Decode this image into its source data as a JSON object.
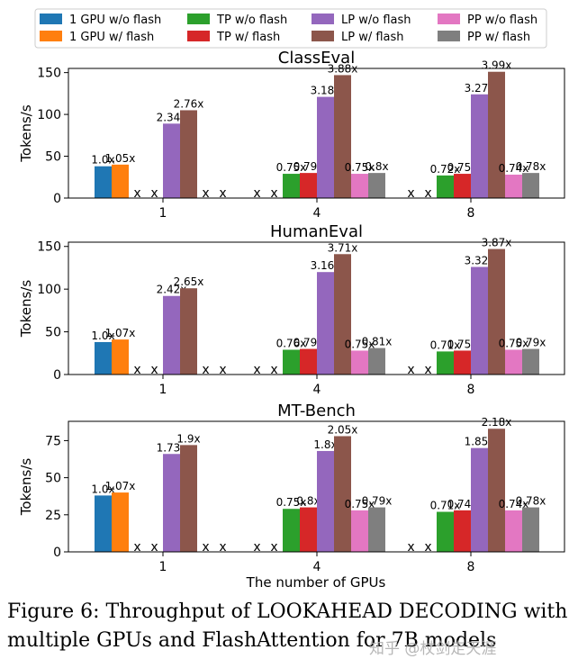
{
  "legend": {
    "entries": [
      {
        "label": "1 GPU w/o flash",
        "color": "#1f77b4"
      },
      {
        "label": "1 GPU w/ flash",
        "color": "#ff7f0e"
      },
      {
        "label": "TP w/o flash",
        "color": "#2ca02c"
      },
      {
        "label": "TP w/ flash",
        "color": "#d62728"
      },
      {
        "label": "LP w/o flash",
        "color": "#9467bd"
      },
      {
        "label": "LP w/ flash",
        "color": "#8c564b"
      },
      {
        "label": "PP w/o flash",
        "color": "#e377c2"
      },
      {
        "label": "PP w/ flash",
        "color": "#7f7f7f"
      }
    ]
  },
  "chart_data": [
    {
      "type": "bar",
      "title": "ClassEval",
      "ylabel": "Tokens/s",
      "xlabel": "",
      "ylim": [
        0,
        155
      ],
      "yticks": [
        0,
        50,
        100,
        150
      ],
      "categories": [
        "1",
        "4",
        "8"
      ],
      "missing_marker": "x",
      "series": [
        {
          "name": "1 GPU w/o flash",
          "values": [
            38,
            null,
            null
          ],
          "labels": [
            "1.0x",
            "x",
            "x"
          ]
        },
        {
          "name": "1 GPU w/ flash",
          "values": [
            40,
            null,
            null
          ],
          "labels": [
            "1.05x",
            "x",
            "x"
          ]
        },
        {
          "name": "TP w/o flash",
          "values": [
            null,
            29,
            27
          ],
          "labels": [
            "x",
            "0.75x",
            "0.72x"
          ]
        },
        {
          "name": "TP w/ flash",
          "values": [
            null,
            30,
            29
          ],
          "labels": [
            "x",
            "0.79x",
            "0.75x"
          ]
        },
        {
          "name": "LP w/o flash",
          "values": [
            89,
            121,
            124
          ],
          "labels": [
            "2.34x",
            "3.18x",
            "3.27x"
          ]
        },
        {
          "name": "LP w/ flash",
          "values": [
            105,
            147,
            151
          ],
          "labels": [
            "2.76x",
            "3.88x",
            "3.99x"
          ]
        },
        {
          "name": "PP w/o flash",
          "values": [
            null,
            29,
            28
          ],
          "labels": [
            "x",
            "0.75x",
            "0.74x"
          ]
        },
        {
          "name": "PP w/ flash",
          "values": [
            null,
            30,
            30
          ],
          "labels": [
            "x",
            "0.8x",
            "0.78x"
          ]
        }
      ]
    },
    {
      "type": "bar",
      "title": "HumanEval",
      "ylabel": "Tokens/s",
      "xlabel": "",
      "ylim": [
        0,
        155
      ],
      "yticks": [
        0,
        50,
        100,
        150
      ],
      "categories": [
        "1",
        "4",
        "8"
      ],
      "missing_marker": "x",
      "series": [
        {
          "name": "1 GPU w/o flash",
          "values": [
            38,
            null,
            null
          ],
          "labels": [
            "1.0x",
            "x",
            "x"
          ]
        },
        {
          "name": "1 GPU w/ flash",
          "values": [
            41,
            null,
            null
          ],
          "labels": [
            "1.07x",
            "x",
            "x"
          ]
        },
        {
          "name": "TP w/o flash",
          "values": [
            null,
            29,
            27
          ],
          "labels": [
            "x",
            "0.76x",
            "0.71x"
          ]
        },
        {
          "name": "TP w/ flash",
          "values": [
            null,
            30,
            28
          ],
          "labels": [
            "x",
            "0.79x",
            "0.75x"
          ]
        },
        {
          "name": "LP w/o flash",
          "values": [
            92,
            120,
            126
          ],
          "labels": [
            "2.42x",
            "3.16x",
            "3.32x"
          ]
        },
        {
          "name": "LP w/ flash",
          "values": [
            101,
            141,
            147
          ],
          "labels": [
            "2.65x",
            "3.71x",
            "3.87x"
          ]
        },
        {
          "name": "PP w/o flash",
          "values": [
            null,
            28,
            29
          ],
          "labels": [
            "x",
            "0.75x",
            "0.75x"
          ]
        },
        {
          "name": "PP w/ flash",
          "values": [
            null,
            31,
            30
          ],
          "labels": [
            "x",
            "0.81x",
            "0.79x"
          ]
        }
      ]
    },
    {
      "type": "bar",
      "title": "MT-Bench",
      "ylabel": "Tokens/s",
      "xlabel": "The number of GPUs",
      "ylim": [
        0,
        88
      ],
      "yticks": [
        0,
        25,
        50,
        75
      ],
      "categories": [
        "1",
        "4",
        "8"
      ],
      "missing_marker": "x",
      "series": [
        {
          "name": "1 GPU w/o flash",
          "values": [
            38,
            null,
            null
          ],
          "labels": [
            "1.0x",
            "x",
            "x"
          ]
        },
        {
          "name": "1 GPU w/ flash",
          "values": [
            40,
            null,
            null
          ],
          "labels": [
            "1.07x",
            "x",
            "x"
          ]
        },
        {
          "name": "TP w/o flash",
          "values": [
            null,
            29,
            27
          ],
          "labels": [
            "x",
            "0.75x",
            "0.71x"
          ]
        },
        {
          "name": "TP w/ flash",
          "values": [
            null,
            30,
            28
          ],
          "labels": [
            "x",
            "0.8x",
            "0.74x"
          ]
        },
        {
          "name": "LP w/o flash",
          "values": [
            66,
            68,
            70
          ],
          "labels": [
            "1.73x",
            "1.8x",
            "1.85x"
          ]
        },
        {
          "name": "LP w/ flash",
          "values": [
            72,
            78,
            83
          ],
          "labels": [
            "1.9x",
            "2.05x",
            "2.18x"
          ]
        },
        {
          "name": "PP w/o flash",
          "values": [
            null,
            28,
            28
          ],
          "labels": [
            "x",
            "0.75x",
            "0.74x"
          ]
        },
        {
          "name": "PP w/ flash",
          "values": [
            null,
            30,
            30
          ],
          "labels": [
            "x",
            "0.79x",
            "0.78x"
          ]
        }
      ]
    }
  ],
  "caption": {
    "line1": "Figure 6: Throughput of LOOKAHEAD DECODING with",
    "line2": "multiple GPUs and FlashAttention for 7B models"
  },
  "watermark": "知乎 @杖剑走天涯"
}
